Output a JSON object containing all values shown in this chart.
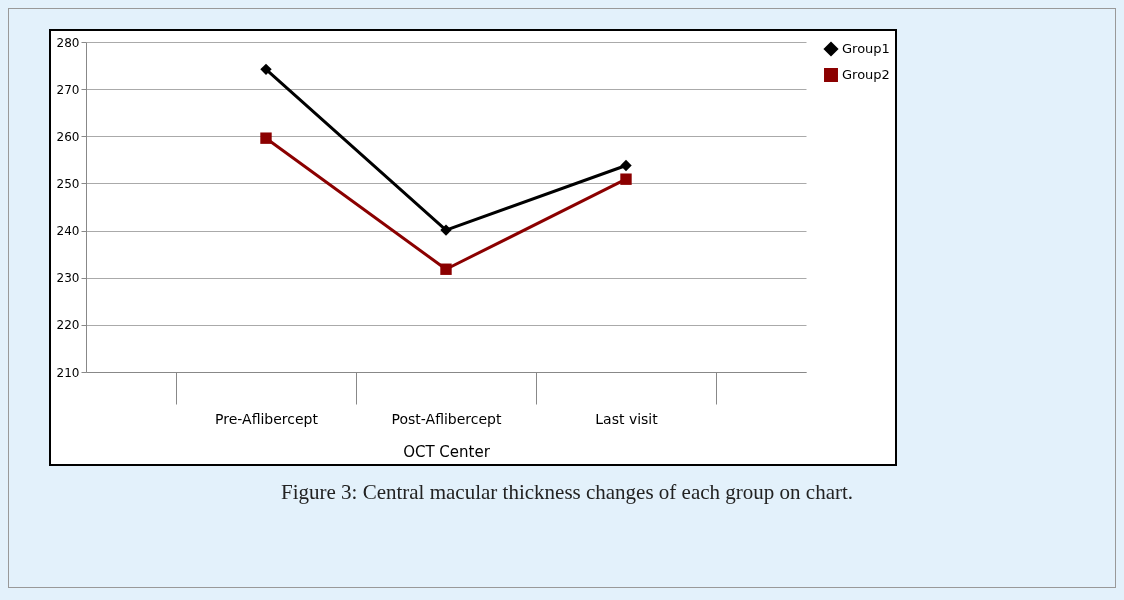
{
  "chart_data": {
    "type": "line",
    "xlabel": "OCT Center",
    "categories": [
      "Pre-Aflibercept",
      "Post-Aflibercept",
      "Last visit"
    ],
    "series": [
      {
        "name": "Group1",
        "color": "#000000",
        "marker": "diamond",
        "values": [
          274.2,
          240.1,
          253.8
        ]
      },
      {
        "name": "Group2",
        "color": "#8b0000",
        "marker": "square",
        "values": [
          259.6,
          231.8,
          250.9
        ]
      }
    ],
    "ylim": [
      210,
      280
    ],
    "yticks": [
      210,
      220,
      230,
      240,
      250,
      260,
      270,
      280
    ],
    "grid": "y",
    "legend": "right",
    "line_style": "solid",
    "annotations": [
      "Figure 3: Central macular thickness changes of each group on chart."
    ]
  }
}
